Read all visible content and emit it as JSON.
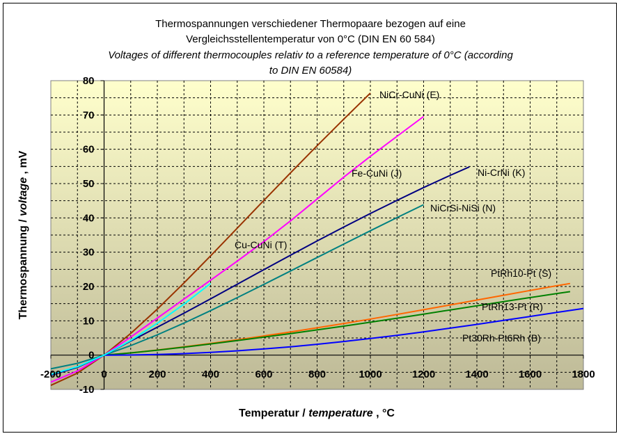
{
  "chart_data": {
    "type": "line",
    "title_lines": [
      "Thermospannungen verschiedener Thermopaare bezogen auf eine",
      "Vergleichsstellentemperatur von 0°C (DIN EN 60 584)"
    ],
    "subtitle_lines": [
      "Voltages of different thermocouples relativ to a reference temperature of 0°C (according",
      "to DIN EN 60584)"
    ],
    "xlabel": {
      "main": "Temperatur / ",
      "italic": "temperature",
      "unit": " , °C"
    },
    "ylabel": {
      "main": "Thermospannung / ",
      "italic": "voltage",
      "unit": " , mV"
    },
    "xlim": [
      -200,
      1800
    ],
    "ylim": [
      -10,
      80
    ],
    "xticks": [
      -200,
      0,
      200,
      400,
      600,
      800,
      1000,
      1200,
      1400,
      1600,
      1800
    ],
    "yticks": [
      -10,
      0,
      10,
      20,
      30,
      40,
      50,
      60,
      70,
      80
    ],
    "grid": true,
    "background": {
      "top": "#FFFFCC",
      "bottom": "#BDB997"
    },
    "series": [
      {
        "name": "NiCr-CuNi (E)",
        "color": "#993300",
        "x": [
          -200,
          -100,
          0,
          100,
          200,
          300,
          400,
          500,
          600,
          700,
          800,
          900,
          1000
        ],
        "y": [
          -8.825,
          -5.237,
          0,
          6.319,
          13.421,
          21.036,
          28.946,
          36.999,
          45.093,
          53.112,
          61.017,
          68.787,
          76.373
        ]
      },
      {
        "name": "Fe-CuNi (J)",
        "color": "#FF00FF",
        "x": [
          -200,
          -100,
          0,
          100,
          200,
          300,
          400,
          500,
          600,
          700,
          800,
          900,
          1000,
          1100,
          1200
        ],
        "y": [
          -7.89,
          -4.633,
          0,
          5.269,
          10.779,
          16.327,
          21.848,
          27.393,
          33.102,
          39.132,
          45.494,
          51.877,
          57.953,
          63.792,
          69.553
        ]
      },
      {
        "name": "Ni-CrNi (K)",
        "color": "#000080",
        "x": [
          -200,
          -100,
          0,
          100,
          200,
          300,
          400,
          500,
          600,
          700,
          800,
          900,
          1000,
          1100,
          1200,
          1300,
          1372
        ],
        "y": [
          -5.891,
          -3.554,
          0,
          4.096,
          8.138,
          12.209,
          16.397,
          20.644,
          24.905,
          29.129,
          33.275,
          37.326,
          41.276,
          45.119,
          48.838,
          52.41,
          54.886
        ]
      },
      {
        "name": "NiCrSi-NiSi (N)",
        "color": "#008080",
        "x": [
          -200,
          -100,
          0,
          100,
          200,
          300,
          400,
          500,
          600,
          700,
          800,
          900,
          1000,
          1100,
          1200
        ],
        "y": [
          -3.99,
          -2.407,
          0,
          2.774,
          5.913,
          9.341,
          12.974,
          16.748,
          20.613,
          24.527,
          28.455,
          32.371,
          36.256,
          40.087,
          43.846
        ]
      },
      {
        "name": "Cu-CuNi (T)",
        "color": "#00FFFF",
        "x": [
          -200,
          -100,
          0,
          100,
          200,
          300,
          400
        ],
        "y": [
          -5.603,
          -3.379,
          0,
          4.279,
          9.288,
          14.862,
          20.872
        ]
      },
      {
        "name": "PtRh10-Pt (S)",
        "color": "#FF6600",
        "x": [
          0,
          100,
          200,
          300,
          400,
          500,
          600,
          700,
          800,
          900,
          1000,
          1100,
          1200,
          1300,
          1400,
          1500,
          1600,
          1700,
          1750
        ],
        "y": [
          0,
          0.647,
          1.469,
          2.401,
          3.408,
          4.471,
          5.583,
          6.743,
          7.95,
          9.205,
          10.506,
          11.85,
          13.228,
          14.629,
          16.04,
          17.451,
          18.849,
          20.222,
          20.877
        ]
      },
      {
        "name": "PtRh13-Pt (R)",
        "color": "#008000",
        "x": [
          0,
          100,
          200,
          300,
          400,
          500,
          600,
          700,
          800,
          900,
          1000,
          1100,
          1200,
          1300,
          1400,
          1500,
          1600,
          1700,
          1750
        ],
        "y": [
          0,
          0.646,
          1.441,
          2.323,
          3.259,
          4.233,
          5.239,
          6.275,
          7.345,
          8.449,
          9.587,
          10.757,
          11.951,
          13.159,
          14.373,
          15.582,
          16.777,
          17.947,
          18.503
        ]
      },
      {
        "name": "Pt30Rh-Pt6Rh (B)",
        "color": "#0000FF",
        "x": [
          0,
          100,
          200,
          300,
          400,
          500,
          600,
          700,
          800,
          900,
          1000,
          1100,
          1200,
          1300,
          1400,
          1500,
          1600,
          1700,
          1800
        ],
        "y": [
          0,
          0.033,
          0.178,
          0.431,
          0.787,
          1.242,
          1.792,
          2.431,
          3.154,
          3.957,
          4.834,
          5.78,
          6.786,
          7.848,
          8.956,
          10.099,
          11.263,
          12.433,
          13.591
        ]
      }
    ]
  }
}
